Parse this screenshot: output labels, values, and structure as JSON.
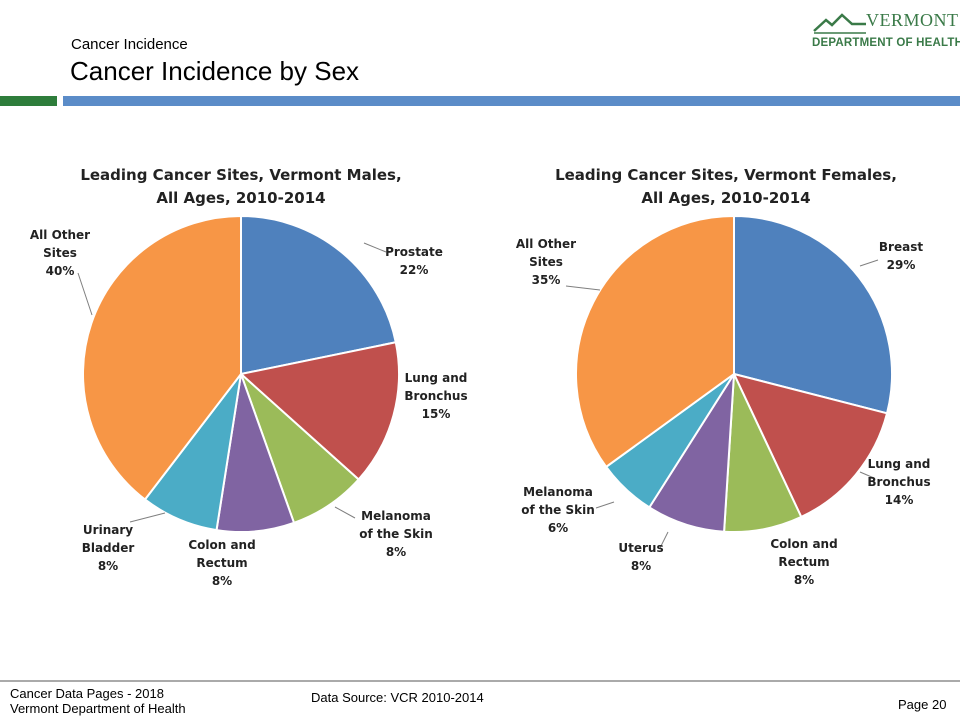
{
  "header": {
    "subtitle": "Cancer Incidence",
    "title": "Cancer Incidence by Sex"
  },
  "logo": {
    "name": "VERMONT",
    "department": "DEPARTMENT OF HEALTH"
  },
  "footer": {
    "line1": "Cancer Data Pages - 2018",
    "line2": "Vermont Department of Health",
    "source": "Data Source: VCR 2010-2014",
    "page": "Page 20"
  },
  "colors": {
    "brand_green": "#2e7d3b",
    "brand_blue": "#5b8cc8"
  },
  "chart_data": [
    {
      "type": "pie",
      "title_lines": [
        "Leading Cancer Sites, Vermont Males,",
        "All Ages, 2010-2014"
      ],
      "categories": [
        "Prostate",
        "Lung and Bronchus",
        "Melanoma of the Skin",
        "Colon and Rectum",
        "Urinary Bladder",
        "All Other Sites"
      ],
      "values": [
        22,
        15,
        8,
        8,
        8,
        40
      ],
      "value_labels": [
        "22%",
        "15%",
        "8%",
        "8%",
        "8%",
        "40%"
      ],
      "label_lines": [
        [
          "Prostate"
        ],
        [
          "Lung and",
          "Bronchus"
        ],
        [
          "Melanoma",
          "of the Skin"
        ],
        [
          "Colon and",
          "Rectum"
        ],
        [
          "Urinary",
          "Bladder"
        ],
        [
          "All Other",
          "Sites"
        ]
      ],
      "colors": [
        "#4f81bd",
        "#c0504d",
        "#9bbb59",
        "#8064a2",
        "#4bacc6",
        "#f79646"
      ]
    },
    {
      "type": "pie",
      "title_lines": [
        "Leading Cancer Sites, Vermont Females,",
        "All Ages, 2010-2014"
      ],
      "categories": [
        "Breast",
        "Lung and Bronchus",
        "Colon and Rectum",
        "Uterus",
        "Melanoma of the Skin",
        "All Other Sites"
      ],
      "values": [
        29,
        14,
        8,
        8,
        6,
        35
      ],
      "value_labels": [
        "29%",
        "14%",
        "8%",
        "8%",
        "6%",
        "35%"
      ],
      "label_lines": [
        [
          "Breast"
        ],
        [
          "Lung and",
          "Bronchus"
        ],
        [
          "Colon and",
          "Rectum"
        ],
        [
          "Uterus"
        ],
        [
          "Melanoma",
          "of the Skin"
        ],
        [
          "All Other",
          "Sites"
        ]
      ],
      "colors": [
        "#4f81bd",
        "#c0504d",
        "#9bbb59",
        "#8064a2",
        "#4bacc6",
        "#f79646"
      ]
    }
  ]
}
